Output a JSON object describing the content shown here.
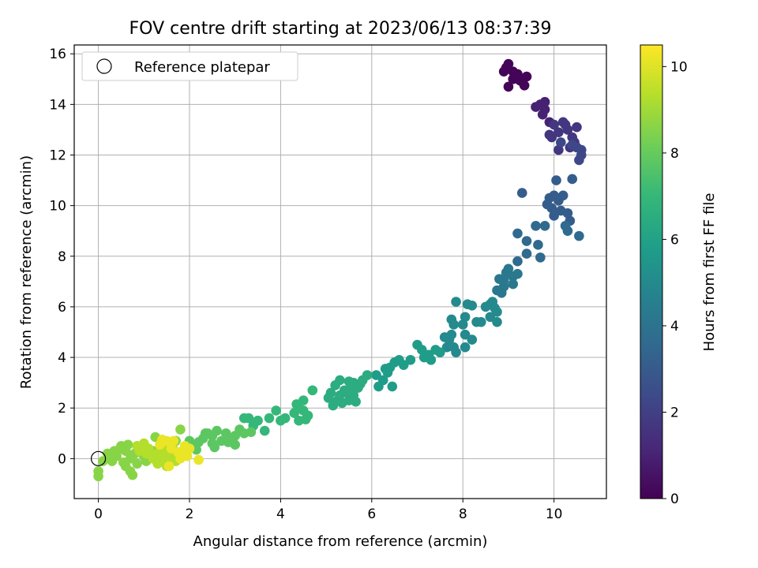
{
  "chart_data": {
    "type": "scatter",
    "title": "FOV centre drift starting at 2023/06/13 08:37:39",
    "xlabel": "Angular distance from reference (arcmin)",
    "ylabel": "Rotation from reference (arcmin)",
    "xlim": [
      -0.53,
      11.15
    ],
    "ylim": [
      -1.58,
      16.35
    ],
    "xticks": [
      "0",
      "2",
      "4",
      "6",
      "8",
      "10"
    ],
    "yticks": [
      "0",
      "2",
      "4",
      "6",
      "8",
      "10",
      "12",
      "14",
      "16"
    ],
    "grid": true,
    "legend": {
      "position": "top-left",
      "entries": [
        "Reference platepar"
      ]
    },
    "reference_point": {
      "x": 0,
      "y": 0
    },
    "colorbar": {
      "label": "Hours from first FF file",
      "range": [
        0,
        10.5
      ],
      "ticks": [
        "0",
        "2",
        "4",
        "6",
        "8",
        "10"
      ],
      "colormap": [
        "#440154",
        "#482878",
        "#3e4989",
        "#31688e",
        "#26828e",
        "#1f9e89",
        "#35b779",
        "#6ece58",
        "#b5de2b",
        "#fde725"
      ]
    },
    "series": [
      {
        "t": 0.1,
        "points": [
          [
            8.9,
            15.3
          ],
          [
            9.0,
            15.6
          ],
          [
            9.1,
            15.0
          ],
          [
            9.2,
            15.2
          ],
          [
            9.3,
            14.9
          ],
          [
            9.0,
            14.7
          ],
          [
            9.1,
            15.3
          ],
          [
            9.4,
            15.1
          ],
          [
            9.35,
            14.75
          ],
          [
            8.95,
            15.45
          ],
          [
            9.15,
            15.15
          ],
          [
            9.25,
            14.95
          ]
        ]
      },
      {
        "t": 1.0,
        "points": [
          [
            9.6,
            13.9
          ],
          [
            9.7,
            14.0
          ],
          [
            9.8,
            14.1
          ],
          [
            9.75,
            13.6
          ],
          [
            9.9,
            13.3
          ],
          [
            9.8,
            13.8
          ]
        ]
      },
      {
        "t": 1.7,
        "points": [
          [
            9.9,
            12.8
          ],
          [
            10.0,
            13.2
          ],
          [
            10.1,
            12.9
          ],
          [
            10.2,
            13.3
          ],
          [
            10.3,
            13.0
          ],
          [
            10.4,
            12.7
          ],
          [
            10.5,
            13.1
          ],
          [
            10.35,
            12.3
          ],
          [
            10.1,
            12.2
          ],
          [
            10.45,
            12.5
          ],
          [
            9.95,
            12.7
          ],
          [
            10.25,
            13.2
          ]
        ]
      },
      {
        "t": 2.3,
        "points": [
          [
            10.5,
            12.3
          ],
          [
            10.6,
            12.0
          ],
          [
            10.55,
            11.8
          ],
          [
            10.4,
            12.4
          ],
          [
            10.6,
            12.2
          ],
          [
            10.15,
            12.5
          ]
        ]
      },
      {
        "t": 3.1,
        "points": [
          [
            9.3,
            10.5
          ],
          [
            10.05,
            11.0
          ],
          [
            10.4,
            11.05
          ],
          [
            9.9,
            10.3
          ],
          [
            10.0,
            10.4
          ],
          [
            10.1,
            10.2
          ],
          [
            10.2,
            10.4
          ],
          [
            9.95,
            9.9
          ],
          [
            10.15,
            9.8
          ],
          [
            10.3,
            9.7
          ],
          [
            10.35,
            9.4
          ],
          [
            10.0,
            9.6
          ],
          [
            9.85,
            10.05
          ]
        ]
      },
      {
        "t": 3.6,
        "points": [
          [
            9.6,
            9.2
          ],
          [
            9.8,
            9.2
          ],
          [
            10.25,
            9.2
          ],
          [
            10.3,
            9.0
          ],
          [
            10.55,
            8.8
          ],
          [
            9.2,
            8.9
          ],
          [
            9.4,
            8.6
          ],
          [
            9.4,
            8.1
          ],
          [
            9.65,
            8.45
          ],
          [
            9.7,
            7.95
          ],
          [
            9.2,
            7.8
          ]
        ]
      },
      {
        "t": 4.2,
        "points": [
          [
            9.0,
            7.5
          ],
          [
            9.1,
            7.2
          ],
          [
            8.95,
            7.35
          ],
          [
            9.1,
            6.9
          ],
          [
            8.8,
            7.1
          ],
          [
            8.9,
            6.8
          ],
          [
            8.75,
            6.65
          ],
          [
            8.85,
            6.55
          ],
          [
            8.9,
            7.05
          ],
          [
            9.2,
            7.3
          ]
        ]
      },
      {
        "t": 5.0,
        "points": [
          [
            8.6,
            6.1
          ],
          [
            8.65,
            6.2
          ],
          [
            8.7,
            5.95
          ],
          [
            8.5,
            6.0
          ],
          [
            8.75,
            5.8
          ],
          [
            8.4,
            5.4
          ],
          [
            8.6,
            5.6
          ],
          [
            8.75,
            5.4
          ],
          [
            8.3,
            5.4
          ],
          [
            8.0,
            5.3
          ],
          [
            8.05,
            5.6
          ],
          [
            8.1,
            6.1
          ],
          [
            8.2,
            6.05
          ],
          [
            7.85,
            6.2
          ],
          [
            8.05,
            4.9
          ],
          [
            8.2,
            4.7
          ],
          [
            8.05,
            4.4
          ],
          [
            7.75,
            5.5
          ],
          [
            7.8,
            5.3
          ],
          [
            7.75,
            4.9
          ],
          [
            7.8,
            4.4
          ],
          [
            7.85,
            4.2
          ],
          [
            7.65,
            4.4
          ],
          [
            7.7,
            4.7
          ],
          [
            7.6,
            4.8
          ]
        ]
      },
      {
        "t": 5.8,
        "points": [
          [
            7.0,
            4.5
          ],
          [
            7.1,
            4.3
          ],
          [
            7.15,
            4.0
          ],
          [
            7.25,
            4.1
          ],
          [
            7.4,
            4.3
          ],
          [
            7.5,
            4.2
          ],
          [
            7.3,
            3.9
          ],
          [
            6.85,
            3.9
          ],
          [
            6.7,
            3.7
          ],
          [
            6.5,
            3.8
          ],
          [
            6.4,
            3.6
          ],
          [
            6.6,
            3.9
          ],
          [
            6.35,
            3.4
          ],
          [
            6.1,
            3.3
          ],
          [
            6.25,
            3.1
          ],
          [
            6.15,
            2.85
          ],
          [
            6.45,
            2.85
          ],
          [
            6.3,
            3.55
          ]
        ]
      },
      {
        "t": 6.5,
        "points": [
          [
            5.9,
            3.3
          ],
          [
            5.8,
            3.1
          ],
          [
            5.6,
            3.0
          ],
          [
            5.5,
            3.05
          ],
          [
            5.3,
            3.1
          ],
          [
            5.2,
            2.9
          ],
          [
            5.1,
            2.6
          ],
          [
            5.3,
            2.5
          ],
          [
            5.5,
            2.3
          ],
          [
            5.6,
            2.5
          ],
          [
            5.7,
            2.8
          ],
          [
            5.4,
            2.7
          ],
          [
            5.25,
            2.3
          ],
          [
            5.15,
            2.1
          ],
          [
            5.35,
            2.2
          ],
          [
            5.65,
            2.25
          ],
          [
            5.45,
            2.6
          ],
          [
            5.55,
            2.85
          ],
          [
            5.75,
            2.95
          ],
          [
            5.05,
            2.4
          ]
        ]
      },
      {
        "t": 7.0,
        "points": [
          [
            4.7,
            2.7
          ],
          [
            4.5,
            2.3
          ],
          [
            4.4,
            2.0
          ],
          [
            4.3,
            1.8
          ],
          [
            4.4,
            1.5
          ],
          [
            4.6,
            1.7
          ],
          [
            4.5,
            1.9
          ],
          [
            4.1,
            1.6
          ],
          [
            3.9,
            1.9
          ],
          [
            3.75,
            1.6
          ],
          [
            4.0,
            1.5
          ],
          [
            3.5,
            1.5
          ],
          [
            3.3,
            1.6
          ],
          [
            3.2,
            1.6
          ],
          [
            3.4,
            1.3
          ],
          [
            3.65,
            1.1
          ],
          [
            4.35,
            2.15
          ],
          [
            4.55,
            1.55
          ]
        ]
      },
      {
        "t": 7.8,
        "points": [
          [
            3.2,
            1.0
          ],
          [
            3.1,
            1.15
          ],
          [
            3.0,
            0.9
          ],
          [
            2.9,
            0.8
          ],
          [
            2.8,
            1.0
          ],
          [
            2.6,
            1.1
          ],
          [
            2.5,
            0.9
          ],
          [
            2.4,
            1.0
          ],
          [
            2.3,
            0.8
          ],
          [
            2.2,
            0.65
          ],
          [
            2.1,
            0.5
          ],
          [
            2.0,
            0.7
          ],
          [
            2.5,
            0.6
          ],
          [
            2.7,
            0.7
          ],
          [
            3.0,
            0.55
          ],
          [
            2.15,
            0.35
          ],
          [
            2.55,
            0.45
          ],
          [
            3.35,
            1.05
          ],
          [
            2.85,
            0.65
          ],
          [
            2.35,
            1.0
          ]
        ]
      },
      {
        "t": 8.6,
        "points": [
          [
            1.8,
            1.15
          ],
          [
            1.7,
            0.7
          ],
          [
            1.6,
            0.5
          ],
          [
            1.55,
            0.2
          ],
          [
            1.4,
            0.0
          ],
          [
            1.2,
            0.3
          ],
          [
            1.0,
            0.1
          ],
          [
            0.9,
            0.4
          ],
          [
            0.8,
            0.2
          ],
          [
            0.7,
            0.0
          ],
          [
            0.6,
            0.3
          ],
          [
            0.5,
            0.5
          ],
          [
            0.4,
            0.1
          ],
          [
            0.3,
            -0.1
          ],
          [
            0.2,
            0.2
          ],
          [
            0.1,
            -0.1
          ],
          [
            0.0,
            -0.5
          ],
          [
            0.0,
            -0.7
          ],
          [
            0.6,
            -0.3
          ],
          [
            0.7,
            -0.5
          ],
          [
            0.75,
            -0.65
          ],
          [
            0.65,
            0.55
          ],
          [
            1.25,
            0.85
          ],
          [
            1.05,
            -0.1
          ],
          [
            0.85,
            -0.2
          ],
          [
            0.45,
            0.35
          ],
          [
            0.35,
            0.3
          ],
          [
            0.25,
            0.0
          ],
          [
            0.55,
            -0.15
          ],
          [
            0.95,
            0.25
          ]
        ]
      },
      {
        "t": 9.3,
        "points": [
          [
            1.2,
            0.0
          ],
          [
            1.3,
            0.2
          ],
          [
            1.1,
            0.4
          ],
          [
            1.0,
            0.6
          ],
          [
            0.9,
            0.3
          ],
          [
            1.5,
            0.1
          ],
          [
            1.4,
            0.3
          ],
          [
            1.6,
            0.0
          ],
          [
            1.7,
            -0.1
          ],
          [
            1.8,
            0.2
          ],
          [
            1.5,
            -0.3
          ],
          [
            1.3,
            -0.2
          ],
          [
            1.15,
            0.15
          ],
          [
            1.45,
            0.45
          ],
          [
            0.85,
            0.5
          ],
          [
            1.65,
            0.35
          ],
          [
            1.35,
            -0.1
          ],
          [
            1.05,
            0.2
          ]
        ]
      },
      {
        "t": 10.2,
        "points": [
          [
            1.5,
            0.7
          ],
          [
            1.4,
            0.75
          ],
          [
            1.65,
            0.7
          ],
          [
            1.9,
            0.5
          ],
          [
            2.0,
            0.4
          ],
          [
            1.85,
            0.3
          ],
          [
            1.95,
            0.1
          ],
          [
            1.8,
            0.0
          ],
          [
            1.6,
            0.4
          ],
          [
            1.55,
            -0.3
          ],
          [
            2.2,
            -0.05
          ],
          [
            1.35,
            0.55
          ],
          [
            1.75,
            0.25
          ]
        ]
      }
    ]
  }
}
